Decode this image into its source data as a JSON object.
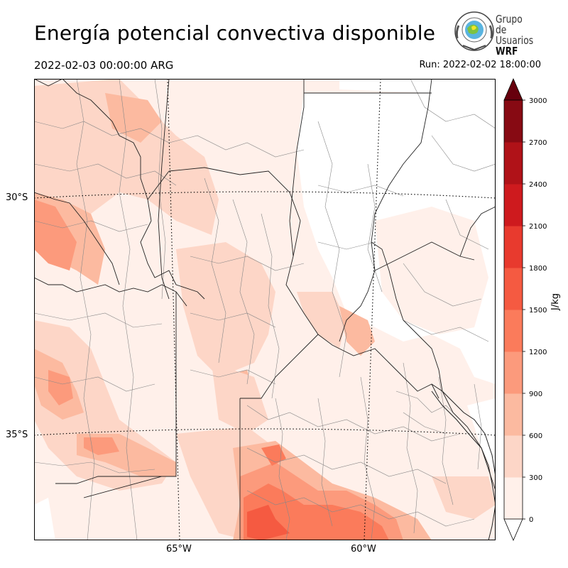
{
  "title": "Energía potencial convectiva disponible",
  "valid_time": "2022-02-03 00:00:00 ARG",
  "run_time": "Run: 2022-02-02 18:00:00",
  "logo": {
    "line1": "Grupo de",
    "line2": "Usuarios",
    "line3": "WRF"
  },
  "axes": {
    "lat_labels": [
      "30°S",
      "35°S"
    ],
    "lon_labels": [
      "65°W",
      "60°W"
    ]
  },
  "colorbar": {
    "unit": "J/kg",
    "ticks": [
      "0",
      "300",
      "600",
      "900",
      "1200",
      "1500",
      "1800",
      "2100",
      "2400",
      "2700",
      "3000"
    ],
    "levels": [
      0,
      300,
      600,
      900,
      1200,
      1500,
      1800,
      2100,
      2400,
      2700,
      3000
    ],
    "colors": [
      "#fff0ea",
      "#fdd6c7",
      "#fcbaa0",
      "#fc9a7c",
      "#fb7b5b",
      "#f55a41",
      "#e83a2e",
      "#ce1a1e",
      "#b01218",
      "#870a13"
    ],
    "extend": "both",
    "under_color": "#ffffff",
    "over_color": "#67000d"
  }
}
